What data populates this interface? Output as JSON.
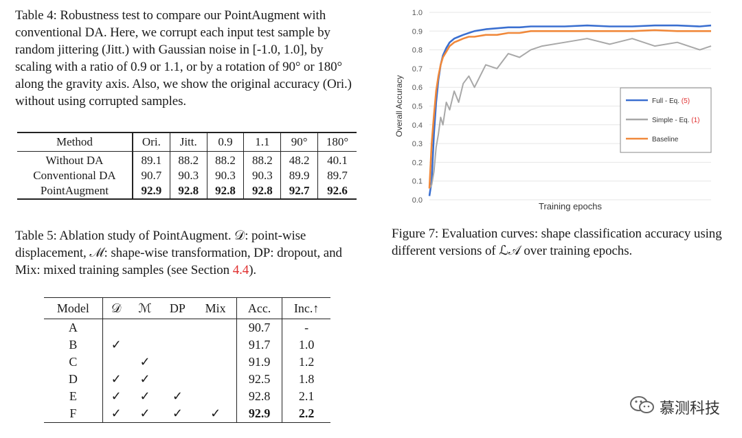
{
  "table4": {
    "caption_label": "Table 4:",
    "caption": "Robustness test to compare our PointAugment with conventional DA. Here, we corrupt each input test sample by random jittering (Jitt.) with Gaussian noise in [-1.0, 1.0], by scaling with a ratio of 0.9 or 1.1, or by a rotation of 90° or 180° along the gravity axis. Also, we show the original accuracy (Ori.) without using corrupted samples.",
    "headers": [
      "Method",
      "Ori.",
      "Jitt.",
      "0.9",
      "1.1",
      "90°",
      "180°"
    ],
    "rows": [
      [
        "Without DA",
        "89.1",
        "88.2",
        "88.2",
        "88.2",
        "48.2",
        "40.1"
      ],
      [
        "Conventional DA",
        "90.7",
        "90.3",
        "90.3",
        "90.3",
        "89.9",
        "89.7"
      ],
      [
        "PointAugment",
        "92.9",
        "92.8",
        "92.8",
        "92.8",
        "92.7",
        "92.6"
      ]
    ]
  },
  "table5": {
    "caption_label": "Table 5:",
    "caption_part1": "Ablation study of PointAugment. 𝒟: point-wise displacement, ℳ: shape-wise transformation, DP: dropout, and Mix: mixed training samples (see Section ",
    "caption_ref": "4.4",
    "caption_part2": ").",
    "headers": [
      "Model",
      "𝒟",
      "ℳ",
      "DP",
      "Mix",
      "Acc.",
      "Inc.↑"
    ],
    "rows": [
      [
        "A",
        "",
        "",
        "",
        "",
        "90.7",
        "-"
      ],
      [
        "B",
        "✓",
        "",
        "",
        "",
        "91.7",
        "1.0"
      ],
      [
        "C",
        "",
        "✓",
        "",
        "",
        "91.9",
        "1.2"
      ],
      [
        "D",
        "✓",
        "✓",
        "",
        "",
        "92.5",
        "1.8"
      ],
      [
        "E",
        "✓",
        "✓",
        "✓",
        "",
        "92.8",
        "2.1"
      ],
      [
        "F",
        "✓",
        "✓",
        "✓",
        "✓",
        "92.9",
        "2.2"
      ]
    ]
  },
  "figure7": {
    "caption_label": "Figure 7:",
    "caption": "Evaluation curves: shape classification accuracy using different versions of ℒ𝒜 over training epochs."
  },
  "chart_data": {
    "type": "line",
    "title": "",
    "xlabel": "Training epochs",
    "ylabel": "Overall Accuracy",
    "ylim": [
      0.0,
      1.0
    ],
    "yticks": [
      "0.0",
      "0.1",
      "0.2",
      "0.3",
      "0.4",
      "0.5",
      "0.6",
      "0.7",
      "0.8",
      "0.9",
      "1.0"
    ],
    "x": [
      0,
      2,
      4,
      6,
      8,
      10,
      12,
      15,
      18,
      22,
      26,
      30,
      35,
      40,
      50,
      60,
      70,
      80,
      90,
      100,
      120,
      140,
      160,
      180,
      200,
      220,
      240,
      250
    ],
    "series": [
      {
        "name": "Full - Eq. ",
        "eq": "(5)",
        "color": "#3a6fd0",
        "values": [
          0.02,
          0.1,
          0.35,
          0.52,
          0.64,
          0.72,
          0.77,
          0.81,
          0.84,
          0.86,
          0.87,
          0.88,
          0.89,
          0.9,
          0.91,
          0.915,
          0.92,
          0.92,
          0.925,
          0.925,
          0.925,
          0.93,
          0.925,
          0.925,
          0.93,
          0.93,
          0.925,
          0.93
        ]
      },
      {
        "name": "Simple - Eq. ",
        "eq": "(1)",
        "color": "#a8a8a8",
        "values": [
          0.06,
          0.08,
          0.15,
          0.28,
          0.35,
          0.44,
          0.4,
          0.52,
          0.48,
          0.58,
          0.52,
          0.62,
          0.66,
          0.6,
          0.72,
          0.7,
          0.78,
          0.76,
          0.8,
          0.82,
          0.84,
          0.86,
          0.83,
          0.86,
          0.82,
          0.84,
          0.8,
          0.82
        ]
      },
      {
        "name": "Baseline",
        "eq": "",
        "color": "#f0883a",
        "values": [
          0.06,
          0.3,
          0.45,
          0.58,
          0.66,
          0.72,
          0.76,
          0.79,
          0.82,
          0.84,
          0.85,
          0.86,
          0.87,
          0.87,
          0.88,
          0.88,
          0.89,
          0.89,
          0.9,
          0.9,
          0.9,
          0.9,
          0.9,
          0.9,
          0.905,
          0.9,
          0.9,
          0.9
        ]
      }
    ]
  },
  "watermark": {
    "text": "慕测科技",
    "icon": "wechat-icon"
  }
}
